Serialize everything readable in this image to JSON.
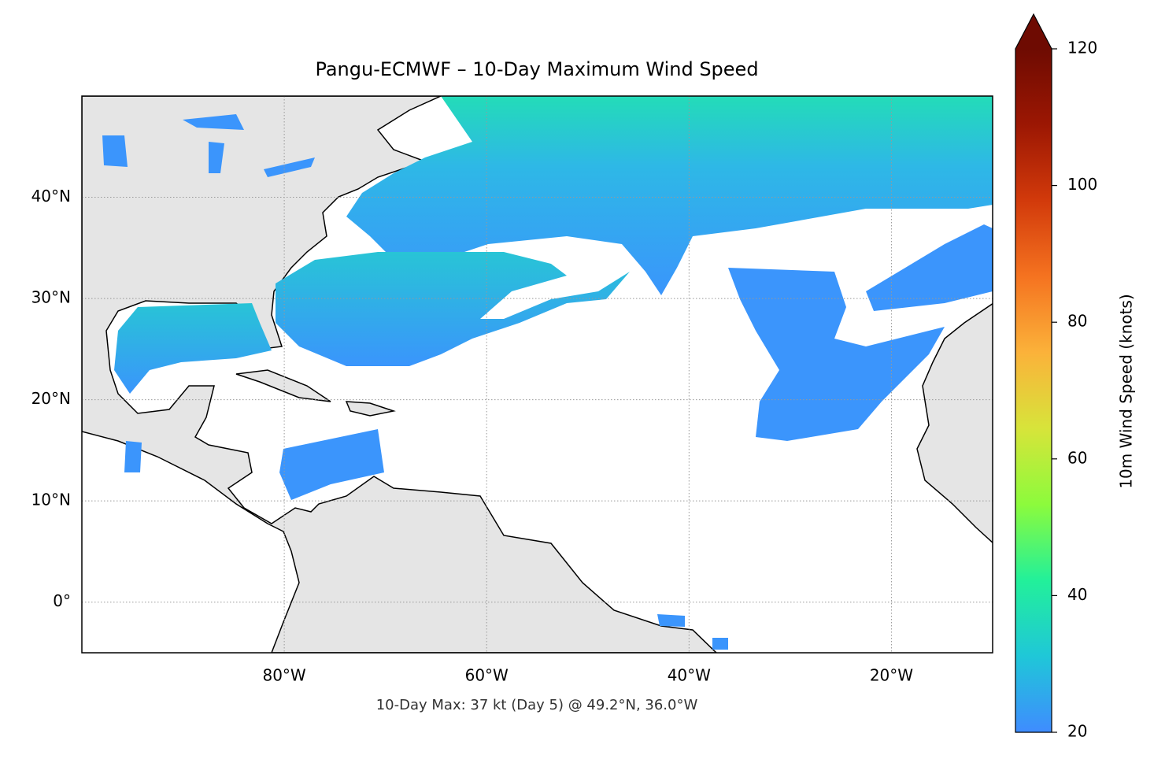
{
  "chart_data": {
    "type": "map",
    "title": "Pangu-ECMWF – 10-Day Maximum Wind Speed",
    "annotation": "10-Day Max: 37 kt (Day 5) @ 49.2°N, 36.0°W",
    "xlim": [
      -100,
      -10
    ],
    "ylim": [
      -5,
      50
    ],
    "xticks": [
      {
        "value": -80,
        "label": "80°W"
      },
      {
        "value": -60,
        "label": "60°W"
      },
      {
        "value": -40,
        "label": "40°W"
      },
      {
        "value": -20,
        "label": "20°W"
      }
    ],
    "yticks": [
      {
        "value": 0,
        "label": "0°"
      },
      {
        "value": 10,
        "label": "10°N"
      },
      {
        "value": 20,
        "label": "20°N"
      },
      {
        "value": 30,
        "label": "30°N"
      },
      {
        "value": 40,
        "label": "40°N"
      }
    ],
    "grid": true,
    "colorbar": {
      "label": "10m Wind Speed (knots)",
      "lim": [
        20,
        120
      ],
      "ticks": [
        20,
        40,
        60,
        80,
        100,
        120
      ],
      "colormap": [
        "#3f8cff",
        "#1fc7d8",
        "#22f09a",
        "#8cfb3c",
        "#d7e43a",
        "#fbb23a",
        "#f57320",
        "#d23a0b",
        "#9c1703",
        "#6e0b02"
      ]
    }
  }
}
